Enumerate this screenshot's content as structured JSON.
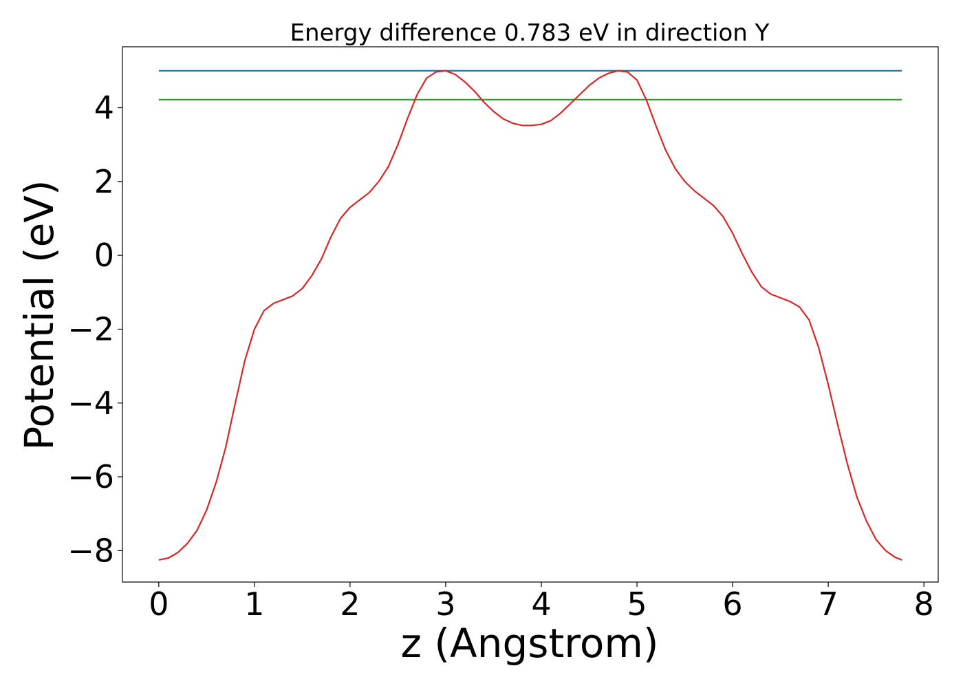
{
  "chart_data": {
    "type": "line",
    "title": "Energy difference 0.783 eV in direction Y",
    "xlabel": "z (Angstrom)",
    "ylabel": "Potential (eV)",
    "xlim": [
      -0.38,
      8.15
    ],
    "ylim": [
      -8.85,
      5.65
    ],
    "xticks": [
      0,
      1,
      2,
      3,
      4,
      5,
      6,
      7,
      8
    ],
    "xtick_labels": [
      "0",
      "1",
      "2",
      "3",
      "4",
      "5",
      "6",
      "7",
      "8"
    ],
    "yticks": [
      -8,
      -6,
      -4,
      -2,
      0,
      2,
      4
    ],
    "ytick_labels": [
      "−8",
      "−6",
      "−4",
      "−2",
      "0",
      "2",
      "4"
    ],
    "grid": false,
    "legend": false,
    "series": [
      {
        "color": "#1f77b4",
        "x": [
          0,
          7.77
        ],
        "y": [
          5.0,
          5.0
        ]
      },
      {
        "color": "#2ca02c",
        "x": [
          0,
          7.77
        ],
        "y": [
          4.217,
          4.217
        ]
      },
      {
        "color": "#d62728",
        "x": [
          0,
          0.1,
          0.2,
          0.3,
          0.4,
          0.5,
          0.6,
          0.7,
          0.8,
          0.9,
          1.0,
          1.1,
          1.2,
          1.3,
          1.4,
          1.5,
          1.6,
          1.7,
          1.8,
          1.9,
          2.0,
          2.1,
          2.2,
          2.3,
          2.4,
          2.5,
          2.6,
          2.7,
          2.8,
          2.9,
          3.0,
          3.1,
          3.2,
          3.3,
          3.4,
          3.5,
          3.6,
          3.7,
          3.8,
          3.9,
          4.0,
          4.1,
          4.2,
          4.3,
          4.4,
          4.5,
          4.6,
          4.7,
          4.8,
          4.9,
          5.0,
          5.1,
          5.2,
          5.3,
          5.4,
          5.5,
          5.6,
          5.7,
          5.8,
          5.9,
          6.0,
          6.1,
          6.2,
          6.3,
          6.4,
          6.5,
          6.6,
          6.7,
          6.8,
          6.9,
          7.0,
          7.1,
          7.2,
          7.3,
          7.4,
          7.5,
          7.6,
          7.7,
          7.77
        ],
        "y": [
          -8.25,
          -8.2,
          -8.05,
          -7.8,
          -7.45,
          -6.9,
          -6.15,
          -5.2,
          -4.0,
          -2.85,
          -2.0,
          -1.5,
          -1.3,
          -1.2,
          -1.1,
          -0.9,
          -0.55,
          -0.1,
          0.5,
          1.0,
          1.3,
          1.5,
          1.7,
          2.0,
          2.4,
          3.0,
          3.7,
          4.35,
          4.8,
          4.97,
          5.0,
          4.9,
          4.7,
          4.45,
          4.15,
          3.9,
          3.7,
          3.58,
          3.52,
          3.52,
          3.55,
          3.65,
          3.85,
          4.1,
          4.35,
          4.6,
          4.8,
          4.93,
          5.0,
          4.97,
          4.75,
          4.2,
          3.5,
          2.85,
          2.35,
          2.0,
          1.75,
          1.55,
          1.35,
          1.05,
          0.6,
          0.05,
          -0.45,
          -0.85,
          -1.05,
          -1.15,
          -1.25,
          -1.4,
          -1.75,
          -2.5,
          -3.5,
          -4.6,
          -5.65,
          -6.55,
          -7.2,
          -7.7,
          -8.0,
          -8.18,
          -8.25
        ]
      }
    ]
  }
}
